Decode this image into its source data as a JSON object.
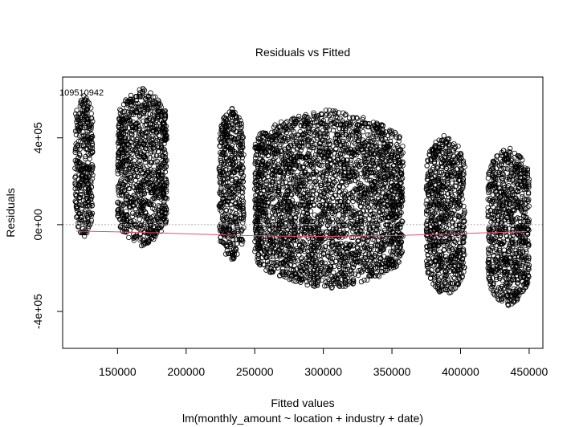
{
  "chart_data": {
    "type": "scatter",
    "title": "Residuals vs Fitted",
    "xlabel": "Fitted values",
    "ylabel": "Residuals",
    "subtitle": "lm(monthly_amount ~ location + industry + date)",
    "xlim": [
      110000,
      460000
    ],
    "ylim": [
      -570000,
      680000
    ],
    "x_ticks": [
      150000,
      200000,
      250000,
      300000,
      350000,
      400000,
      450000
    ],
    "x_tick_labels": [
      "150000",
      "200000",
      "250000",
      "300000",
      "350000",
      "400000",
      "450000"
    ],
    "y_ticks": [
      -400000,
      0,
      400000
    ],
    "y_tick_labels": [
      "-4e+05",
      "0e+00",
      "4e+05"
    ],
    "reference_line": {
      "y": 0,
      "style": "dotted",
      "color": "#aaaaaa"
    },
    "outlier_label": "109510942",
    "point_style": {
      "shape": "open-circle",
      "color": "#000000"
    },
    "smoother_color": "#df536b",
    "smoother": [
      [
        120000,
        -30000
      ],
      [
        140000,
        -32000
      ],
      [
        160000,
        -35000
      ],
      [
        180000,
        -38000
      ],
      [
        200000,
        -42000
      ],
      [
        220000,
        -46000
      ],
      [
        240000,
        -50000
      ],
      [
        260000,
        -52000
      ],
      [
        280000,
        -54000
      ],
      [
        300000,
        -54000
      ],
      [
        320000,
        -53000
      ],
      [
        340000,
        -51000
      ],
      [
        360000,
        -49000
      ],
      [
        380000,
        -45000
      ],
      [
        400000,
        -41000
      ],
      [
        420000,
        -37000
      ],
      [
        440000,
        -34000
      ],
      [
        448000,
        -32000
      ]
    ],
    "clusters": [
      {
        "x": [
          119000,
          132000
        ],
        "y": [
          -60000,
          600000
        ]
      },
      {
        "x": [
          150000,
          186000
        ],
        "y": [
          -100000,
          630000
        ]
      },
      {
        "x": [
          224000,
          242000
        ],
        "y": [
          -170000,
          540000
        ]
      },
      {
        "x": [
          250000,
          358000
        ],
        "y": [
          -300000,
          530000
        ]
      },
      {
        "x": [
          375000,
          403000
        ],
        "y": [
          -330000,
          420000
        ]
      },
      {
        "x": [
          420000,
          450000
        ],
        "y": [
          -380000,
          360000
        ]
      }
    ]
  }
}
